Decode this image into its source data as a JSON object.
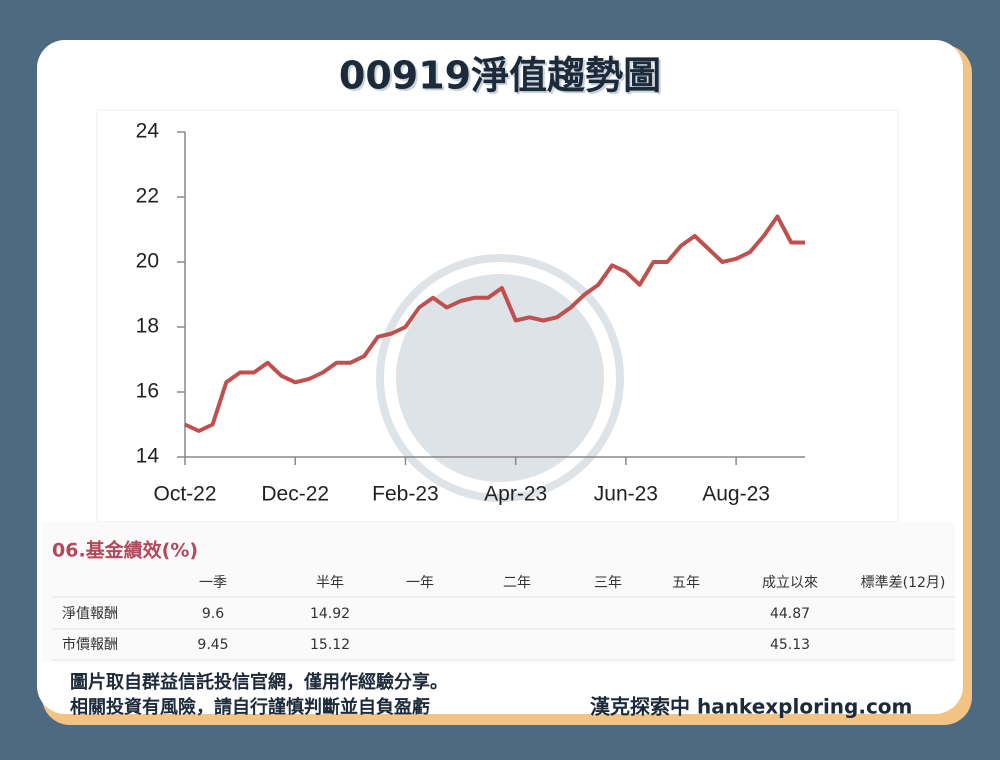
{
  "title": "00919淨值趨勢圖",
  "chart_data": {
    "type": "line",
    "categories": [
      "Oct-22",
      null,
      null,
      null,
      null,
      null,
      null,
      null,
      "Dec-22",
      null,
      null,
      null,
      null,
      null,
      null,
      null,
      "Feb-23",
      null,
      null,
      null,
      null,
      null,
      null,
      null,
      "Apr-23",
      null,
      null,
      null,
      null,
      null,
      null,
      null,
      "Jun-23",
      null,
      null,
      null,
      null,
      null,
      null,
      null,
      "Aug-23",
      null,
      null,
      null,
      null,
      null
    ],
    "values": [
      15.0,
      14.8,
      15.0,
      16.3,
      16.6,
      16.6,
      16.9,
      16.5,
      16.3,
      16.4,
      16.6,
      16.9,
      16.9,
      17.1,
      17.7,
      17.8,
      18.0,
      18.6,
      18.9,
      18.6,
      18.8,
      18.9,
      18.9,
      19.2,
      18.2,
      18.3,
      18.2,
      18.3,
      18.6,
      19.0,
      19.3,
      19.9,
      19.7,
      19.3,
      20.0,
      20.0,
      20.5,
      20.8,
      20.4,
      20.0,
      20.1,
      20.3,
      20.8,
      21.4,
      20.6,
      20.6
    ],
    "color": "#c0504d",
    "ylim": [
      14,
      24
    ],
    "yticks": [
      14,
      16,
      18,
      20,
      22,
      24
    ],
    "grid": false
  },
  "table": {
    "title": "06.基金績效(%)",
    "columns": [
      "一季",
      "半年",
      "一年",
      "二年",
      "三年",
      "五年",
      "成立以來",
      "標準差(12月)"
    ],
    "rows": [
      {
        "label": "淨值報酬",
        "cells": [
          9.6,
          14.92,
          null,
          null,
          null,
          null,
          44.87,
          null
        ]
      },
      {
        "label": "市價報酬",
        "cells": [
          9.45,
          15.12,
          null,
          null,
          null,
          null,
          45.13,
          null
        ]
      }
    ]
  },
  "footer": {
    "notes": [
      "圖片取自群益信託投信官網，僅用作經驗分享。",
      "相關投資有風險，請自行謹慎判斷並自負盈虧"
    ],
    "credit": "漢克探索中 hankexploring.com"
  }
}
